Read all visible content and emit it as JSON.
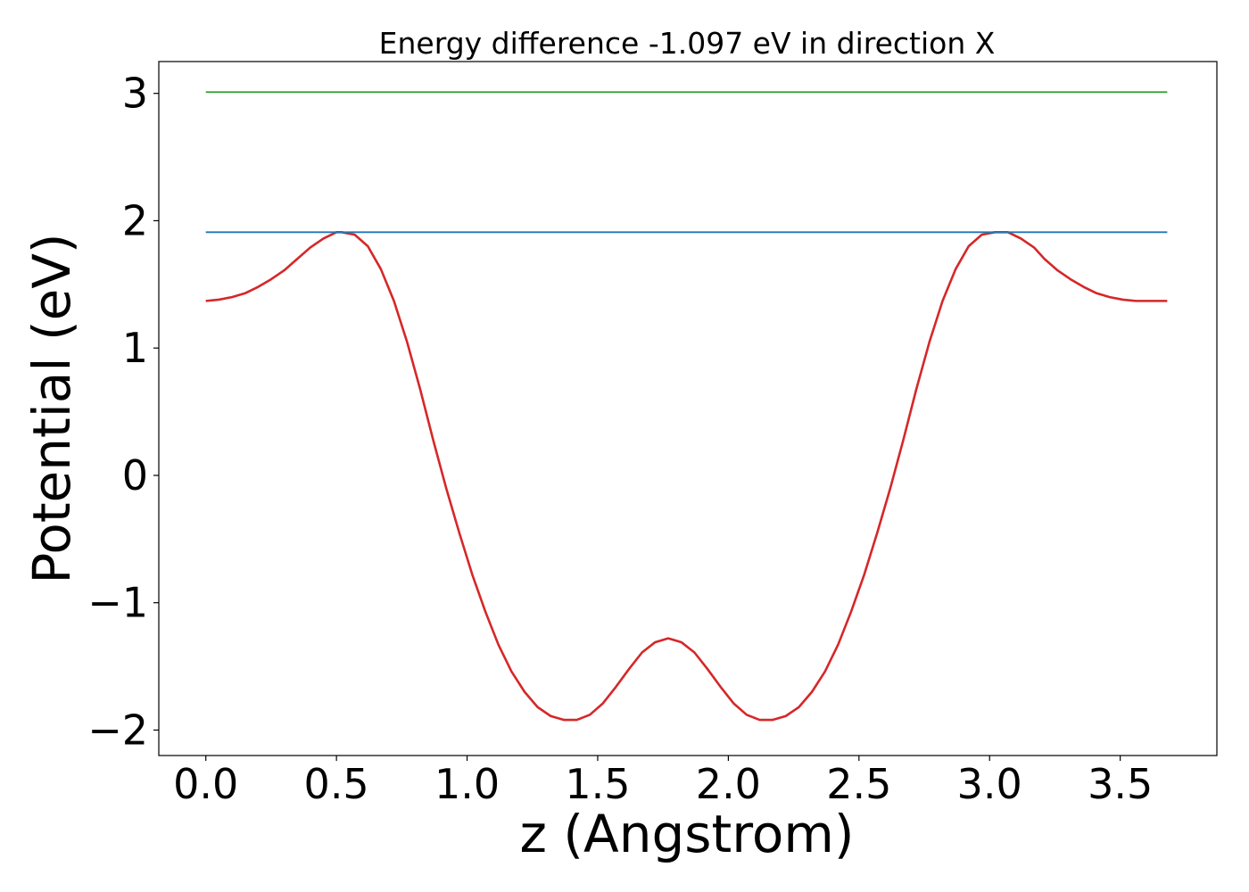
{
  "chart_data": {
    "type": "line",
    "title": "Energy difference -1.097 eV in direction X",
    "xlabel": "z (Angstrom)",
    "ylabel": "Potential (eV)",
    "xlim": [
      -0.18,
      3.87
    ],
    "ylim": [
      -2.2,
      3.25
    ],
    "x_ticks": [
      0.0,
      0.5,
      1.0,
      1.5,
      2.0,
      2.5,
      3.0,
      3.5
    ],
    "x_tick_labels": [
      "0.0",
      "0.5",
      "1.0",
      "1.5",
      "2.0",
      "2.5",
      "3.0",
      "3.5"
    ],
    "y_ticks": [
      -2,
      -1,
      0,
      1,
      2,
      3
    ],
    "y_tick_labels": [
      "−2",
      "−1",
      "0",
      "1",
      "2",
      "3"
    ],
    "grid": false,
    "series": [
      {
        "color": "#d62728",
        "x": [
          0.0,
          0.05,
          0.1,
          0.15,
          0.2,
          0.25,
          0.3,
          0.35,
          0.4,
          0.45,
          0.5,
          0.52,
          0.57,
          0.62,
          0.67,
          0.72,
          0.77,
          0.82,
          0.87,
          0.92,
          0.97,
          1.02,
          1.07,
          1.12,
          1.17,
          1.22,
          1.27,
          1.32,
          1.37,
          1.42,
          1.47,
          1.52,
          1.57,
          1.62,
          1.67,
          1.72,
          1.77,
          1.82,
          1.87,
          1.92,
          1.97,
          2.02,
          2.07,
          2.12,
          2.17,
          2.22,
          2.27,
          2.32,
          2.37,
          2.42,
          2.47,
          2.52,
          2.57,
          2.62,
          2.67,
          2.72,
          2.77,
          2.82,
          2.87,
          2.92,
          2.97,
          3.02,
          3.07,
          3.12,
          3.17,
          3.21,
          3.26,
          3.31,
          3.36,
          3.41,
          3.46,
          3.51,
          3.56,
          3.61,
          3.66,
          3.68
        ],
        "y": [
          1.37,
          1.38,
          1.4,
          1.43,
          1.48,
          1.54,
          1.61,
          1.7,
          1.79,
          1.86,
          1.91,
          1.91,
          1.89,
          1.8,
          1.62,
          1.37,
          1.05,
          0.68,
          0.28,
          -0.1,
          -0.45,
          -0.78,
          -1.07,
          -1.33,
          -1.54,
          -1.7,
          -1.82,
          -1.89,
          -1.92,
          -1.92,
          -1.88,
          -1.79,
          -1.66,
          -1.52,
          -1.39,
          -1.31,
          -1.28,
          -1.31,
          -1.39,
          -1.52,
          -1.66,
          -1.79,
          -1.88,
          -1.92,
          -1.92,
          -1.89,
          -1.82,
          -1.7,
          -1.54,
          -1.33,
          -1.07,
          -0.78,
          -0.45,
          -0.1,
          0.28,
          0.68,
          1.05,
          1.37,
          1.62,
          1.8,
          1.89,
          1.91,
          1.91,
          1.86,
          1.79,
          1.7,
          1.61,
          1.54,
          1.48,
          1.43,
          1.4,
          1.38,
          1.37,
          1.37,
          1.37,
          1.37
        ]
      },
      {
        "color": "#1f77b4",
        "x": [
          0.0,
          3.68
        ],
        "y": [
          1.91,
          1.91
        ]
      },
      {
        "color": "#2ca02c",
        "x": [
          0.0,
          3.68
        ],
        "y": [
          3.01,
          3.01
        ]
      }
    ]
  }
}
